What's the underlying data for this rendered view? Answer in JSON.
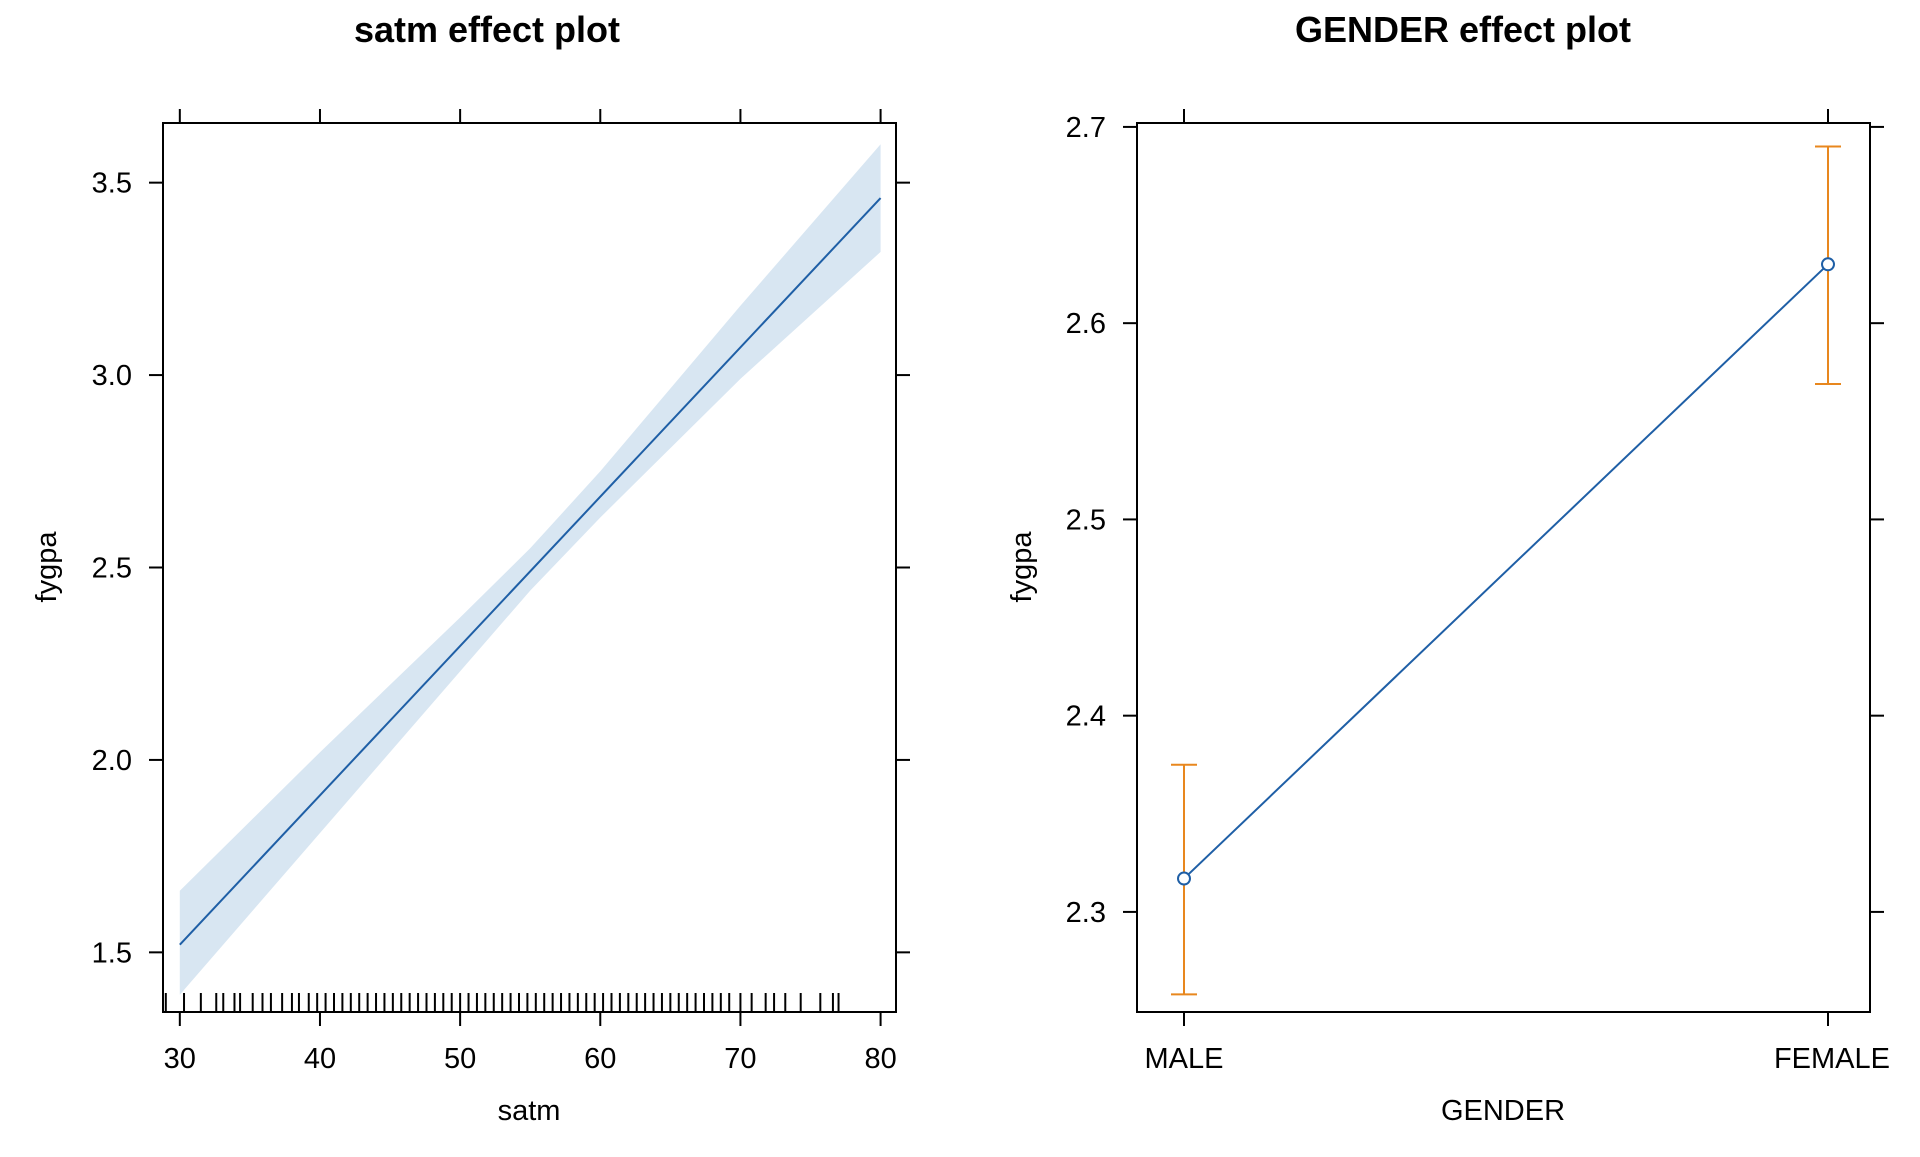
{
  "chart_data": [
    {
      "type": "line",
      "title": "satm effect plot",
      "xlabel": "satm",
      "ylabel": "fygpa",
      "xlim": [
        28.8,
        81.1
      ],
      "ylim": [
        1.345,
        3.655
      ],
      "x_ticks": [
        30,
        40,
        50,
        60,
        70,
        80
      ],
      "y_ticks": [
        1.5,
        2.0,
        2.5,
        3.0,
        3.5
      ],
      "x_tick_labels": [
        "30",
        "40",
        "50",
        "60",
        "70",
        "80"
      ],
      "y_tick_labels": [
        "1.5",
        "2.0",
        "2.5",
        "3.0",
        "3.5"
      ],
      "series": [
        {
          "fit": [
            {
              "x": 30,
              "y": 1.52
            },
            {
              "x": 80,
              "y": 3.46
            }
          ],
          "band": [
            {
              "x": 30,
              "lower": 1.39,
              "upper": 1.66
            },
            {
              "x": 40,
              "lower": 1.81,
              "upper": 2.02
            },
            {
              "x": 50,
              "lower": 2.23,
              "upper": 2.37
            },
            {
              "x": 55,
              "lower": 2.44,
              "upper": 2.55
            },
            {
              "x": 60,
              "lower": 2.63,
              "upper": 2.75
            },
            {
              "x": 70,
              "lower": 2.99,
              "upper": 3.18
            },
            {
              "x": 80,
              "lower": 3.32,
              "upper": 3.6
            }
          ]
        }
      ],
      "rug": [
        29,
        30.3,
        31.5,
        32.6,
        33.1,
        33.9,
        34.3,
        35.2,
        35.9,
        36.5,
        37.3,
        38,
        38.5,
        39.2,
        39.8,
        40.4,
        41,
        41.6,
        42.2,
        42.8,
        43.4,
        44,
        44.6,
        45.2,
        45.8,
        46.4,
        47,
        47.6,
        48.2,
        48.8,
        49.4,
        50,
        50.6,
        51.2,
        51.8,
        52.4,
        53,
        53.6,
        54.2,
        54.8,
        55.4,
        56,
        56.6,
        57.2,
        57.8,
        58.4,
        59,
        59.6,
        60.2,
        60.8,
        61.4,
        62,
        62.6,
        63.2,
        63.8,
        64.4,
        65,
        65.6,
        66.2,
        66.8,
        67.4,
        68,
        68.6,
        69.2,
        70,
        70.8,
        71.8,
        72.4,
        73.2,
        74.3,
        75.7,
        76.6,
        77
      ]
    },
    {
      "type": "line",
      "title": "GENDER effect plot",
      "xlabel": "GENDER",
      "ylabel": "fygpa",
      "categories": [
        "MALE",
        "FEMALE"
      ],
      "ylim": [
        2.249,
        2.702
      ],
      "y_ticks": [
        2.3,
        2.4,
        2.5,
        2.6,
        2.7
      ],
      "y_tick_labels": [
        "2.3",
        "2.4",
        "2.5",
        "2.6",
        "2.7"
      ],
      "series": [
        {
          "values": [
            2.317,
            2.63
          ],
          "lower": [
            2.258,
            2.569
          ],
          "upper": [
            2.375,
            2.69
          ]
        }
      ]
    }
  ],
  "colors": {
    "fit_line": "#1f5fa6",
    "band_fill": "#d8e6f2",
    "error_bar": "#e8871e",
    "axis": "#000000"
  }
}
